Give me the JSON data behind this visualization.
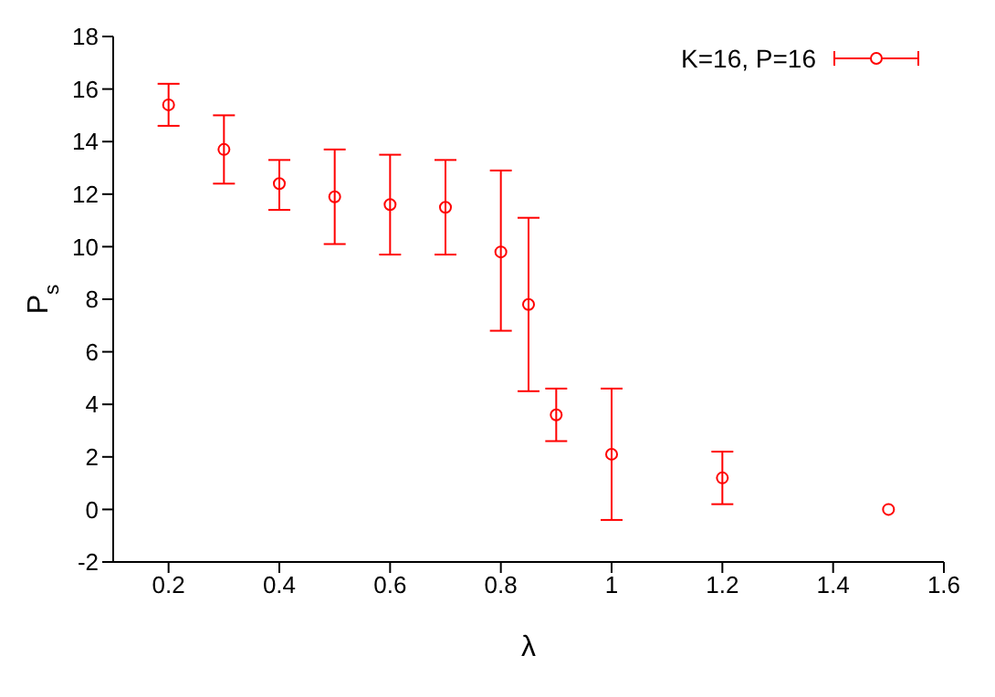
{
  "chart_data": {
    "type": "scatter",
    "xlabel": "λ",
    "ylabel": "P$_{s}$",
    "legend": "top right",
    "marker": "circle",
    "grid": false,
    "xlim": [
      0.1,
      1.6
    ],
    "xticks": [
      0.2,
      0.4,
      0.6,
      0.8,
      1,
      1.2,
      1.4,
      1.6
    ],
    "ylim": [
      -2,
      18
    ],
    "yticks": [
      -2,
      0,
      2,
      4,
      6,
      8,
      10,
      12,
      14,
      16,
      18
    ],
    "x": [
      0.2,
      0.3,
      0.4,
      0.5,
      0.6,
      0.7,
      0.8,
      0.85,
      0.9,
      1.0,
      1.2,
      1.5
    ],
    "series": [
      {
        "name": "K=16, P=16",
        "color": "#ff0000",
        "values": [
          15.4,
          13.7,
          12.4,
          11.9,
          11.6,
          11.5,
          9.8,
          7.8,
          3.6,
          2.1,
          1.2,
          0.0
        ],
        "errors": [
          [
            14.6,
            16.2
          ],
          [
            12.4,
            15.0
          ],
          [
            11.4,
            13.3
          ],
          [
            10.1,
            13.7
          ],
          [
            9.7,
            13.5
          ],
          [
            9.7,
            13.3
          ],
          [
            6.8,
            12.9
          ],
          [
            4.5,
            11.1
          ],
          [
            2.6,
            4.6
          ],
          [
            -0.4,
            4.6
          ],
          [
            0.2,
            2.2
          ],
          null
        ]
      }
    ]
  }
}
